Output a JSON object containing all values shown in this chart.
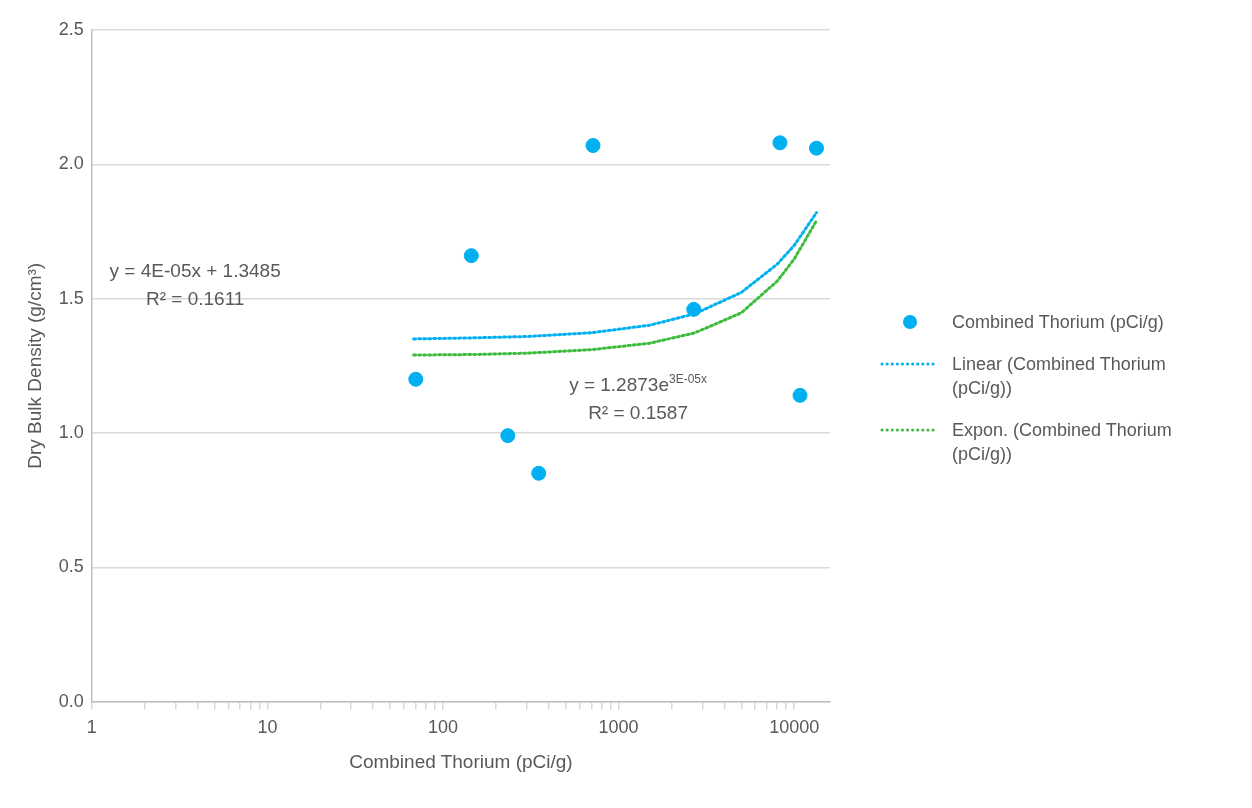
{
  "chart_data": {
    "type": "scatter",
    "xlabel": "Combined Thorium (pCi/g)",
    "ylabel": "Dry Bulk Density (g/cm³)",
    "log": "x",
    "grid": "y",
    "legend": "right",
    "marker": "circle",
    "xlim": [
      1,
      16000
    ],
    "xticks": [
      1,
      {
        "value": 2,
        "label": null
      },
      {
        "value": 3,
        "label": null
      },
      {
        "value": 4,
        "label": null
      },
      {
        "value": 5,
        "label": null
      },
      {
        "value": 6,
        "label": null
      },
      {
        "value": 7,
        "label": null
      },
      {
        "value": 8,
        "label": null
      },
      {
        "value": 9,
        "label": null
      },
      10,
      {
        "value": 20,
        "label": null
      },
      {
        "value": 30,
        "label": null
      },
      {
        "value": 40,
        "label": null
      },
      {
        "value": 50,
        "label": null
      },
      {
        "value": 60,
        "label": null
      },
      {
        "value": 70,
        "label": null
      },
      {
        "value": 80,
        "label": null
      },
      {
        "value": 90,
        "label": null
      },
      100,
      {
        "value": 200,
        "label": null
      },
      {
        "value": 300,
        "label": null
      },
      {
        "value": 400,
        "label": null
      },
      {
        "value": 500,
        "label": null
      },
      {
        "value": 600,
        "label": null
      },
      {
        "value": 700,
        "label": null
      },
      {
        "value": 800,
        "label": null
      },
      {
        "value": 900,
        "label": null
      },
      1000,
      {
        "value": 2000,
        "label": null
      },
      {
        "value": 3000,
        "label": null
      },
      {
        "value": 4000,
        "label": null
      },
      {
        "value": 5000,
        "label": null
      },
      {
        "value": 6000,
        "label": null
      },
      {
        "value": 7000,
        "label": null
      },
      {
        "value": 8000,
        "label": null
      },
      {
        "value": 9000,
        "label": null
      },
      10000
    ],
    "ylim": [
      0,
      2.5
    ],
    "yticks": [
      {
        "value": 0,
        "label": "0.0"
      },
      {
        "value": 0.5,
        "label": "0.5"
      },
      {
        "value": 1,
        "label": "1.0"
      },
      {
        "value": 1.5,
        "label": "1.5"
      },
      {
        "value": 2,
        "label": "2.0"
      },
      {
        "value": 2.5,
        "label": "2.5"
      }
    ],
    "series": [
      {
        "name": "Combined Thorium (pCi/g)",
        "color": "#00b0f0",
        "x": [
          70,
          145,
          234,
          351,
          715,
          2680,
          8300,
          10800,
          13400
        ],
        "values": [
          1.2,
          1.66,
          0.99,
          0.85,
          2.07,
          1.46,
          2.08,
          1.14,
          2.06
        ]
      },
      {
        "name": "Linear (Combined Thorium (pCi/g))",
        "type": "line",
        "line_style": "dotted",
        "marker": "none",
        "color": "#00b0f0",
        "x": [
          68,
          150,
          300,
          700,
          1500,
          2700,
          5000,
          8000,
          10000,
          13400
        ],
        "values": [
          1.35,
          1.354,
          1.359,
          1.373,
          1.401,
          1.443,
          1.523,
          1.628,
          1.698,
          1.82
        ]
      },
      {
        "name": "Expon. (Combined Thorium (pCi/g))",
        "type": "line",
        "line_style": "dotted",
        "marker": "none",
        "color": "#3dbb3d",
        "x": [
          68,
          150,
          300,
          700,
          1500,
          2700,
          5000,
          8000,
          10000,
          13400
        ],
        "values": [
          1.29,
          1.292,
          1.297,
          1.31,
          1.334,
          1.372,
          1.447,
          1.565,
          1.647,
          1.79
        ]
      }
    ],
    "annotations": [
      "y = 4E-05x + 1.3485\nR² = 0.1611",
      "y = 1.2873e$^{3E-05x}$\nR² = 0.1587"
    ]
  }
}
